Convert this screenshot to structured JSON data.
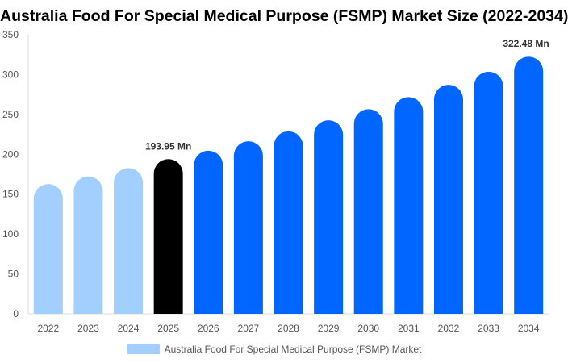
{
  "chart_data": {
    "type": "bar",
    "title": "Australia Food For Special Medical Purpose (FSMP) Market Size (2022-2034)",
    "categories": [
      "2022",
      "2023",
      "2024",
      "2025",
      "2026",
      "2027",
      "2028",
      "2029",
      "2030",
      "2031",
      "2032",
      "2033",
      "2034"
    ],
    "series": [
      {
        "name": "Australia Food For Special Medical Purpose (FSMP) Market",
        "values": [
          162.8,
          172.2,
          182.7,
          193.95,
          204.5,
          216.4,
          228.8,
          242.7,
          256.5,
          271.7,
          287.2,
          303.6,
          322.48
        ]
      }
    ],
    "data_labels": [
      {
        "category": "2025",
        "text": "193.95 Mn"
      },
      {
        "category": "2034",
        "text": "322.48 Mn"
      }
    ],
    "ylim": [
      0,
      350
    ],
    "yticks": [
      0,
      50,
      100,
      150,
      200,
      250,
      300,
      350
    ],
    "grid": false,
    "legend_position": "bottom",
    "colors": {
      "historical": "#a3cfff",
      "current": "#000000",
      "forecast": "#0066ff"
    },
    "color_by_category": [
      "historical",
      "historical",
      "historical",
      "current",
      "forecast",
      "forecast",
      "forecast",
      "forecast",
      "forecast",
      "forecast",
      "forecast",
      "forecast",
      "forecast"
    ],
    "xlabel": "",
    "ylabel": ""
  }
}
